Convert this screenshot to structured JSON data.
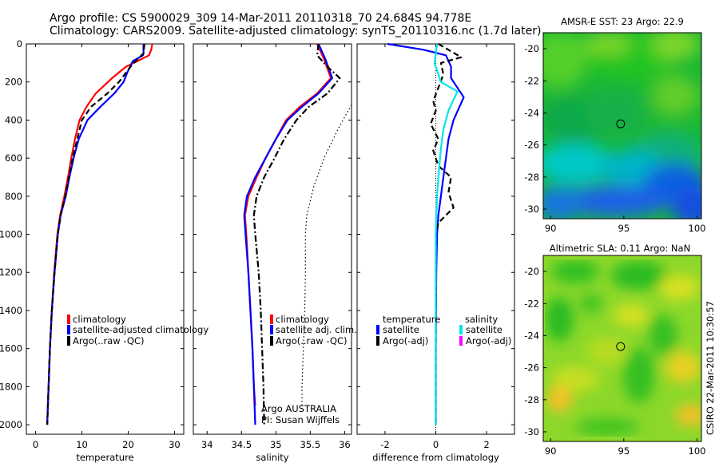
{
  "header": {
    "line1": "Argo profile: CS 5900029_309 14-Mar-2011 20110318_70 24.684S 94.778E",
    "line2": "Climatology: CARS2009. Satellite-adjusted climatology: synTS_20110316.nc (1.7d later)"
  },
  "side_text": "CSIRO 22-Mar-2011 10:30:57",
  "colors": {
    "climatology": "#ff0000",
    "satellite": "#0000ff",
    "argo": "#000000",
    "satellite_salinity": "#00e5ee",
    "argo_adj_salinity": "#ff00ff"
  },
  "chart_data": [
    {
      "type": "line",
      "xlabel": "temperature",
      "xlim": [
        -2,
        32
      ],
      "ylim": [
        2050,
        0
      ],
      "xticks": [
        0,
        10,
        20,
        30
      ],
      "yticks": [
        0,
        200,
        400,
        600,
        800,
        1000,
        1200,
        1400,
        1600,
        1800,
        2000
      ],
      "legend": [
        "climatology",
        "satellite-adjusted climatology",
        "Argo(..raw -QC)"
      ],
      "series": [
        {
          "name": "climatology",
          "style": "solid",
          "color": "#ff0000",
          "points": [
            [
              25.2,
              0
            ],
            [
              25,
              30
            ],
            [
              24.5,
              60
            ],
            [
              22,
              90
            ],
            [
              19.5,
              120
            ],
            [
              16.5,
              180
            ],
            [
              13,
              260
            ],
            [
              11,
              330
            ],
            [
              9.5,
              400
            ],
            [
              8.5,
              500
            ],
            [
              7.7,
              600
            ],
            [
              7,
              700
            ],
            [
              6.2,
              800
            ],
            [
              5.3,
              900
            ],
            [
              4.7,
              1000
            ],
            [
              4,
              1200
            ],
            [
              3.5,
              1400
            ],
            [
              3.1,
              1600
            ],
            [
              2.8,
              1800
            ],
            [
              2.5,
              2000
            ]
          ]
        },
        {
          "name": "satellite-adjusted climatology",
          "style": "solid",
          "color": "#0000ff",
          "points": [
            [
              23.3,
              0
            ],
            [
              23.3,
              50
            ],
            [
              23.2,
              60
            ],
            [
              21,
              90
            ],
            [
              19.8,
              150
            ],
            [
              19,
              200
            ],
            [
              17,
              260
            ],
            [
              14,
              330
            ],
            [
              11.2,
              400
            ],
            [
              9.3,
              500
            ],
            [
              8.2,
              600
            ],
            [
              7.3,
              700
            ],
            [
              6.5,
              800
            ],
            [
              5.4,
              900
            ],
            [
              4.8,
              1000
            ],
            [
              4.1,
              1200
            ],
            [
              3.5,
              1400
            ],
            [
              3.1,
              1600
            ],
            [
              2.8,
              1800
            ],
            [
              2.5,
              2000
            ]
          ]
        },
        {
          "name": "Argo(..raw -QC)",
          "style": "dashed",
          "color": "#000000",
          "points": [
            [
              23.5,
              0
            ],
            [
              23.3,
              50
            ],
            [
              22,
              80
            ],
            [
              20.5,
              120
            ],
            [
              18,
              200
            ],
            [
              15.5,
              260
            ],
            [
              12,
              330
            ],
            [
              10,
              400
            ],
            [
              9,
              500
            ],
            [
              8,
              600
            ],
            [
              7.2,
              700
            ],
            [
              6.4,
              800
            ],
            [
              5.4,
              900
            ],
            [
              4.8,
              1000
            ],
            [
              4.1,
              1200
            ],
            [
              3.5,
              1400
            ],
            [
              3.1,
              1600
            ],
            [
              2.8,
              1800
            ],
            [
              2.5,
              2000
            ]
          ]
        }
      ]
    },
    {
      "type": "line",
      "xlabel": "salinity",
      "xlim": [
        33.8,
        36.1
      ],
      "ylim": [
        2050,
        0
      ],
      "xticks": [
        34,
        34.5,
        35,
        35.5,
        36
      ],
      "legend": [
        "climatology",
        "satellite adj. clim.",
        "Argo(..raw -QC)"
      ],
      "annotations": [
        "Argo AUSTRALIA",
        "PI: Susan Wijffels"
      ],
      "series": [
        {
          "name": "climatology",
          "style": "solid",
          "color": "#ff0000",
          "points": [
            [
              35.6,
              0
            ],
            [
              35.7,
              80
            ],
            [
              35.8,
              180
            ],
            [
              35.6,
              260
            ],
            [
              35.35,
              330
            ],
            [
              35.15,
              400
            ],
            [
              35,
              500
            ],
            [
              34.85,
              600
            ],
            [
              34.72,
              700
            ],
            [
              34.6,
              800
            ],
            [
              34.55,
              900
            ],
            [
              34.57,
              1000
            ],
            [
              34.6,
              1200
            ],
            [
              34.63,
              1400
            ],
            [
              34.66,
              1600
            ],
            [
              34.68,
              1800
            ],
            [
              34.7,
              1900
            ]
          ]
        },
        {
          "name": "satellite adj. clim.",
          "style": "solid",
          "color": "#0000ff",
          "points": [
            [
              35.62,
              0
            ],
            [
              35.72,
              80
            ],
            [
              35.82,
              180
            ],
            [
              35.62,
              260
            ],
            [
              35.38,
              330
            ],
            [
              35.17,
              400
            ],
            [
              35,
              500
            ],
            [
              34.85,
              600
            ],
            [
              34.7,
              700
            ],
            [
              34.58,
              800
            ],
            [
              34.54,
              900
            ],
            [
              34.56,
              1000
            ],
            [
              34.6,
              1200
            ],
            [
              34.63,
              1400
            ],
            [
              34.66,
              1600
            ],
            [
              34.68,
              1800
            ],
            [
              34.7,
              2000
            ]
          ]
        },
        {
          "name": "Argo(..raw -QC)",
          "style": "dashdot",
          "color": "#000000",
          "points": [
            [
              35.62,
              0
            ],
            [
              35.6,
              60
            ],
            [
              35.75,
              120
            ],
            [
              35.93,
              180
            ],
            [
              35.75,
              260
            ],
            [
              35.48,
              330
            ],
            [
              35.3,
              400
            ],
            [
              35.12,
              500
            ],
            [
              34.98,
              600
            ],
            [
              34.83,
              700
            ],
            [
              34.72,
              800
            ],
            [
              34.68,
              900
            ],
            [
              34.7,
              1000
            ],
            [
              34.75,
              1200
            ],
            [
              34.78,
              1400
            ],
            [
              34.8,
              1600
            ],
            [
              34.82,
              1800
            ],
            [
              34.83,
              2000
            ]
          ]
        },
        {
          "name": "",
          "style": "dotted",
          "color": "#000000",
          "points": [
            [
              36.1,
              320
            ],
            [
              35.9,
              450
            ],
            [
              35.7,
              600
            ],
            [
              35.55,
              750
            ],
            [
              35.45,
              900
            ],
            [
              35.43,
              1000
            ],
            [
              35.43,
              1200
            ],
            [
              35.42,
              1400
            ],
            [
              35.4,
              1600
            ],
            [
              35.38,
              1800
            ],
            [
              35.38,
              1900
            ]
          ]
        }
      ]
    },
    {
      "type": "line",
      "xlabel": "difference from climatology",
      "xlim": [
        -3.1,
        3.1
      ],
      "ylim": [
        2050,
        0
      ],
      "xticks": [
        -2,
        0,
        2
      ],
      "legend": [
        "temperature",
        "satellite",
        "Argo(-adj)",
        "salinity",
        "satellite",
        "Argo(-adj)"
      ],
      "series": [
        {
          "name": "satellite",
          "group": "temperature",
          "style": "solid",
          "color": "#0000ff",
          "points": [
            [
              -1.9,
              0
            ],
            [
              -0.5,
              30
            ],
            [
              0.4,
              60
            ],
            [
              0.6,
              120
            ],
            [
              0.6,
              180
            ],
            [
              1.1,
              280
            ],
            [
              0.7,
              400
            ],
            [
              0.5,
              500
            ],
            [
              0.4,
              600
            ],
            [
              0.3,
              700
            ],
            [
              0.2,
              800
            ],
            [
              0.1,
              900
            ],
            [
              0.05,
              1000
            ],
            [
              0.02,
              1200
            ],
            [
              0.01,
              1400
            ],
            [
              0,
              1600
            ],
            [
              0,
              2000
            ]
          ]
        },
        {
          "name": "Argo(-adj)",
          "group": "temperature",
          "style": "dashed",
          "color": "#000000",
          "points": [
            [
              0.1,
              0
            ],
            [
              1,
              70
            ],
            [
              0.2,
              100
            ],
            [
              0.3,
              160
            ],
            [
              0.1,
              230
            ],
            [
              -0.1,
              300
            ],
            [
              0,
              350
            ],
            [
              -0.2,
              420
            ],
            [
              0.1,
              500
            ],
            [
              -0.1,
              560
            ],
            [
              0.1,
              640
            ],
            [
              0.6,
              700
            ],
            [
              0.5,
              780
            ],
            [
              0.7,
              860
            ],
            [
              0.1,
              940
            ],
            [
              0,
              1000
            ],
            [
              0,
              1100
            ],
            [
              0,
              2000
            ]
          ]
        },
        {
          "name": "satellite",
          "group": "salinity",
          "style": "solid",
          "color": "#00e5ee",
          "points": [
            [
              0.05,
              0
            ],
            [
              0,
              50
            ],
            [
              -0.05,
              100
            ],
            [
              0.2,
              200
            ],
            [
              0.85,
              250
            ],
            [
              0.5,
              350
            ],
            [
              0.3,
              450
            ],
            [
              0.2,
              550
            ],
            [
              0.1,
              700
            ],
            [
              0.05,
              800
            ],
            [
              0.02,
              900
            ],
            [
              0,
              1000
            ],
            [
              0,
              1500
            ],
            [
              0,
              2000
            ]
          ]
        },
        {
          "name": "Argo(-adj)",
          "group": "salinity",
          "style": "dashed",
          "color": "#ff00ff",
          "points": []
        }
      ]
    },
    {
      "type": "heatmap",
      "title": "AMSR-E SST: 23 Argo: 22.9",
      "xlim": [
        89.5,
        100.3
      ],
      "ylim": [
        -30.6,
        -19
      ],
      "xticks": [
        90,
        95,
        100
      ],
      "yticks": [
        -20,
        -22,
        -24,
        -26,
        -28,
        -30
      ],
      "marker": [
        94.78,
        -24.68
      ]
    },
    {
      "type": "heatmap",
      "title": "Altimetric SLA: 0.11 Argo: NaN",
      "xlim": [
        89.5,
        100.3
      ],
      "ylim": [
        -30.6,
        -19
      ],
      "xticks": [
        90,
        95,
        100
      ],
      "yticks": [
        -20,
        -22,
        -24,
        -26,
        -28,
        -30
      ],
      "marker": [
        94.78,
        -24.68
      ]
    }
  ]
}
